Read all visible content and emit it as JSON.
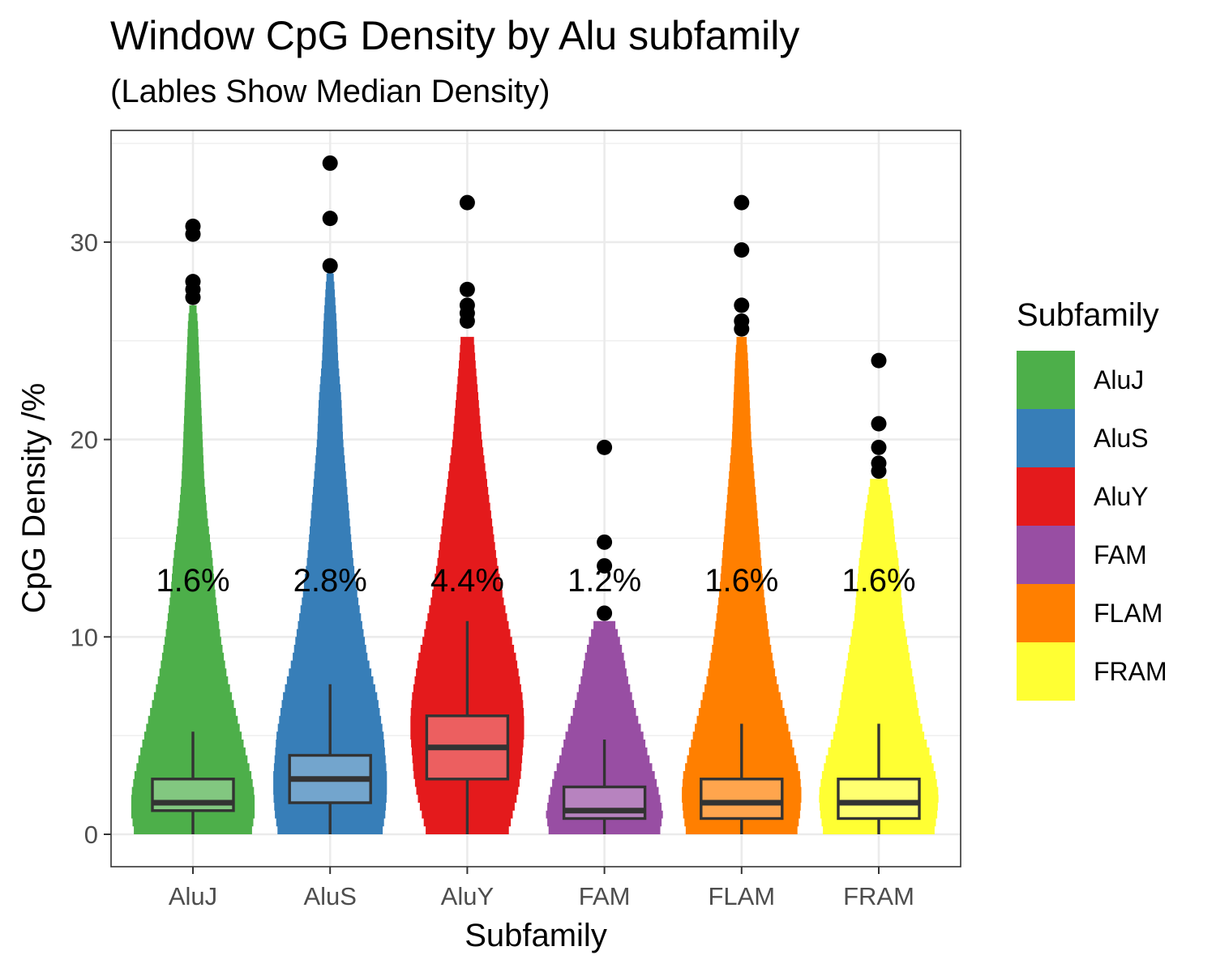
{
  "chart_data": {
    "type": "violin",
    "title": "Window CpG Density by Alu subfamily",
    "subtitle": "(Lables Show Median Density)",
    "xlabel": "Subfamily",
    "ylabel": "CpG Density /%",
    "ylim": [
      -1.6,
      35.2
    ],
    "yticks": [
      0,
      10,
      20,
      30
    ],
    "grid": true,
    "legend": {
      "title": "Subfamily",
      "position": "right"
    },
    "categories": [
      "AluJ",
      "AluS",
      "AluY",
      "FAM",
      "FLAM",
      "FRAM"
    ],
    "series": [
      {
        "name": "AluJ",
        "color": "#4DAF4A",
        "median_label": "1.6%",
        "box": {
          "whisker_low": 0,
          "q1": 1.2,
          "median": 1.6,
          "q3": 2.8,
          "whisker_high": 5.2
        },
        "violin_max": 26.8,
        "outliers": [
          30.8,
          30.4,
          28.0,
          27.6,
          27.2
        ],
        "density": [
          [
            0,
            0.36
          ],
          [
            1,
            0.38
          ],
          [
            2,
            0.38
          ],
          [
            3,
            0.36
          ],
          [
            4,
            0.33
          ],
          [
            5,
            0.3
          ],
          [
            6,
            0.27
          ],
          [
            7,
            0.24
          ],
          [
            8,
            0.21
          ],
          [
            9,
            0.19
          ],
          [
            10,
            0.17
          ],
          [
            12,
            0.14
          ],
          [
            14,
            0.12
          ],
          [
            16,
            0.09
          ],
          [
            18,
            0.07
          ],
          [
            20,
            0.06
          ],
          [
            22,
            0.05
          ],
          [
            24,
            0.04
          ],
          [
            26,
            0.03
          ],
          [
            26.8,
            0.02
          ]
        ]
      },
      {
        "name": "AluS",
        "color": "#377EB8",
        "median_label": "2.8%",
        "box": {
          "whisker_low": 0,
          "q1": 1.6,
          "median": 2.8,
          "q3": 4.0,
          "whisker_high": 7.6
        },
        "violin_max": 28.8,
        "outliers": [
          34.0,
          31.2,
          28.8
        ],
        "density": [
          [
            0,
            0.32
          ],
          [
            1,
            0.34
          ],
          [
            2,
            0.35
          ],
          [
            3,
            0.35
          ],
          [
            4,
            0.34
          ],
          [
            5,
            0.33
          ],
          [
            6,
            0.31
          ],
          [
            7,
            0.29
          ],
          [
            8,
            0.26
          ],
          [
            9,
            0.23
          ],
          [
            10,
            0.21
          ],
          [
            12,
            0.17
          ],
          [
            14,
            0.14
          ],
          [
            16,
            0.12
          ],
          [
            18,
            0.1
          ],
          [
            20,
            0.08
          ],
          [
            22,
            0.07
          ],
          [
            24,
            0.05
          ],
          [
            26,
            0.04
          ],
          [
            28,
            0.025
          ],
          [
            28.8,
            0.015
          ]
        ]
      },
      {
        "name": "AluY",
        "color": "#E41A1C",
        "median_label": "4.4%",
        "box": {
          "whisker_low": 0,
          "q1": 2.8,
          "median": 4.4,
          "q3": 6.0,
          "whisker_high": 10.8
        },
        "violin_max": 25.2,
        "outliers": [
          32.0,
          27.6,
          26.8,
          26.4,
          26.0
        ],
        "density": [
          [
            0,
            0.25
          ],
          [
            1,
            0.28
          ],
          [
            2,
            0.31
          ],
          [
            3,
            0.33
          ],
          [
            4,
            0.34
          ],
          [
            5,
            0.35
          ],
          [
            6,
            0.35
          ],
          [
            7,
            0.34
          ],
          [
            8,
            0.32
          ],
          [
            9,
            0.3
          ],
          [
            10,
            0.27
          ],
          [
            12,
            0.22
          ],
          [
            14,
            0.18
          ],
          [
            16,
            0.15
          ],
          [
            18,
            0.12
          ],
          [
            20,
            0.09
          ],
          [
            22,
            0.07
          ],
          [
            24,
            0.05
          ],
          [
            25.2,
            0.04
          ]
        ]
      },
      {
        "name": "FAM",
        "color": "#984EA3",
        "median_label": "1.2%",
        "box": {
          "whisker_low": 0,
          "q1": 0.8,
          "median": 1.2,
          "q3": 2.4,
          "whisker_high": 4.8
        },
        "violin_max": 10.8,
        "outliers": [
          19.6,
          14.8,
          13.6,
          11.2
        ],
        "density": [
          [
            0,
            0.34
          ],
          [
            1,
            0.36
          ],
          [
            2,
            0.34
          ],
          [
            3,
            0.31
          ],
          [
            4,
            0.27
          ],
          [
            5,
            0.24
          ],
          [
            6,
            0.2
          ],
          [
            7,
            0.17
          ],
          [
            8,
            0.14
          ],
          [
            9,
            0.12
          ],
          [
            10,
            0.09
          ],
          [
            10.8,
            0.06
          ]
        ]
      },
      {
        "name": "FLAM",
        "color": "#FF7F00",
        "median_label": "1.6%",
        "box": {
          "whisker_low": 0,
          "q1": 0.8,
          "median": 1.6,
          "q3": 2.8,
          "whisker_high": 5.6
        },
        "violin_max": 25.2,
        "outliers": [
          32.0,
          29.6,
          26.8,
          26.0,
          25.6
        ],
        "density": [
          [
            0,
            0.34
          ],
          [
            1,
            0.36
          ],
          [
            2,
            0.37
          ],
          [
            3,
            0.36
          ],
          [
            4,
            0.33
          ],
          [
            5,
            0.3
          ],
          [
            6,
            0.27
          ],
          [
            7,
            0.24
          ],
          [
            8,
            0.21
          ],
          [
            9,
            0.19
          ],
          [
            10,
            0.17
          ],
          [
            12,
            0.14
          ],
          [
            14,
            0.12
          ],
          [
            16,
            0.1
          ],
          [
            18,
            0.08
          ],
          [
            20,
            0.06
          ],
          [
            22,
            0.05
          ],
          [
            24,
            0.04
          ],
          [
            25.2,
            0.03
          ]
        ]
      },
      {
        "name": "FRAM",
        "color": "#FFFF33",
        "median_label": "1.6%",
        "box": {
          "whisker_low": 0,
          "q1": 0.8,
          "median": 1.6,
          "q3": 2.8,
          "whisker_high": 5.6
        },
        "violin_max": 18.0,
        "outliers": [
          24.0,
          20.8,
          19.6,
          18.8,
          18.4
        ],
        "density": [
          [
            0,
            0.34
          ],
          [
            1,
            0.36
          ],
          [
            2,
            0.37
          ],
          [
            3,
            0.35
          ],
          [
            4,
            0.32
          ],
          [
            5,
            0.28
          ],
          [
            6,
            0.25
          ],
          [
            7,
            0.23
          ],
          [
            8,
            0.21
          ],
          [
            9,
            0.19
          ],
          [
            10,
            0.17
          ],
          [
            11,
            0.15
          ],
          [
            12,
            0.14
          ],
          [
            13,
            0.13
          ],
          [
            14,
            0.12
          ],
          [
            15,
            0.1
          ],
          [
            16,
            0.09
          ],
          [
            17,
            0.07
          ],
          [
            18,
            0.05
          ]
        ]
      }
    ]
  }
}
